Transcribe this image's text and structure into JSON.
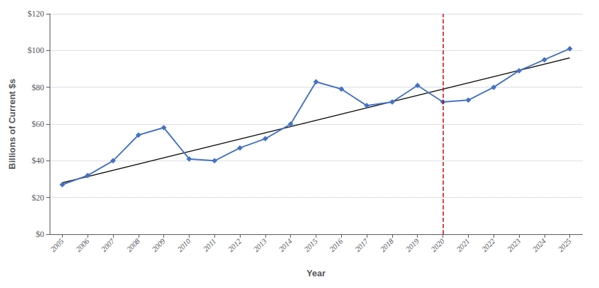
{
  "chart_data": {
    "type": "line",
    "x": [
      2005,
      2006,
      2007,
      2008,
      2009,
      2010,
      2011,
      2012,
      2013,
      2014,
      2015,
      2016,
      2017,
      2018,
      2019,
      2020,
      2021,
      2022,
      2023,
      2024,
      2025
    ],
    "series": [
      {
        "type": "line",
        "color": "#4472C4",
        "marker": "diamond",
        "line_style": "solid",
        "values": [
          27,
          32,
          40,
          54,
          58,
          41,
          40,
          47,
          52,
          60,
          83,
          79,
          70,
          72,
          81,
          72,
          73,
          80,
          89,
          95,
          101
        ]
      },
      {
        "type": "line",
        "color": "#1a1a1a",
        "line_style": "solid",
        "x": [
          2005,
          2025
        ],
        "values": [
          28,
          96
        ]
      }
    ],
    "vlines": [
      {
        "x": 2020,
        "color": "#CC0000",
        "line_style": "dashed"
      }
    ],
    "xlabel": "Year",
    "ylabel": "Billions of Current $s",
    "xlim": [
      2004.5,
      2025.5
    ],
    "xticks": [
      2005,
      2006,
      2007,
      2008,
      2009,
      2010,
      2011,
      2012,
      2013,
      2014,
      2015,
      2016,
      2017,
      2018,
      2019,
      2020,
      2021,
      2022,
      2023,
      2024,
      2025
    ],
    "ylim": [
      0,
      120
    ],
    "yticks": [
      {
        "value": 0,
        "label": "$0"
      },
      {
        "value": 20,
        "label": "$20"
      },
      {
        "value": 40,
        "label": "$40"
      },
      {
        "value": 60,
        "label": "$60"
      },
      {
        "value": 80,
        "label": "$80"
      },
      {
        "value": 100,
        "label": "$100"
      },
      {
        "value": 120,
        "label": "$120"
      }
    ],
    "grid": "y"
  }
}
